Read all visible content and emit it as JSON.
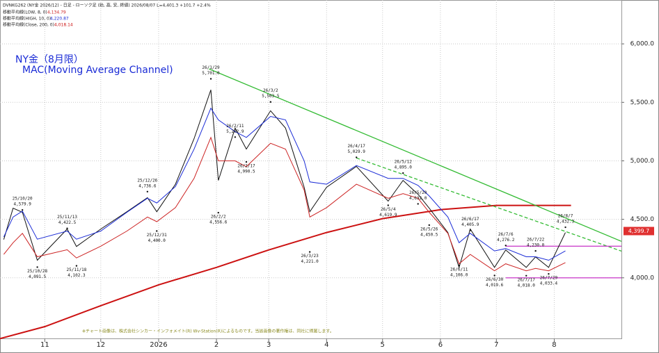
{
  "header": {
    "line": "DVNKG262 (NY金 2026/12) - 日足 - ローソク足 (始, 高, 安, 終値)  2026/08/07  L=4,401.3 +101.7 +2.4%",
    "indicators": [
      {
        "name": "移動平均線(LOW, 8, 0)",
        "value": "4,134.79"
      },
      {
        "name": "移動平均線(HIGH, 10, 0)",
        "value": "4,220.87"
      },
      {
        "name": "移動平均線(Close, 200, 0)",
        "value": "4,018.14"
      }
    ]
  },
  "chart_data": {
    "type": "line",
    "title": "NY金（8月限）",
    "subtitle": "MAC(Moving Average Channel)",
    "note": "※チャート画像は、株式会社シンカー・インフォメイト(R) Wv-Station(R)によるものです。当該画像の著作権は、同社に帰属します。",
    "xlim": [
      "2025-10-08",
      "2026-09-06"
    ],
    "xticks": [
      {
        "value": "2025-11-01",
        "label": "11"
      },
      {
        "value": "2025-12-01",
        "label": "12"
      },
      {
        "value": "2026-01-01",
        "label": "2026"
      },
      {
        "value": "2026-02-01",
        "label": "2"
      },
      {
        "value": "2026-03-01",
        "label": "3"
      },
      {
        "value": "2026-04-01",
        "label": "4"
      },
      {
        "value": "2026-05-01",
        "label": "5"
      },
      {
        "value": "2026-06-01",
        "label": "6"
      },
      {
        "value": "2026-07-01",
        "label": "7"
      },
      {
        "value": "2026-08-01",
        "label": "8"
      }
    ],
    "ylim": [
      3476,
      6375
    ],
    "yticks": [
      {
        "value": 4000,
        "label": "4,000.0"
      },
      {
        "value": 4500,
        "label": "4,500.0"
      },
      {
        "value": 5000,
        "label": "5,000.0"
      },
      {
        "value": 5500,
        "label": "5,500.0"
      },
      {
        "value": 6000,
        "label": "6,000.0"
      }
    ],
    "x": [
      "2025-10-10",
      "2025-10-15",
      "2025-10-20",
      "2025-10-28",
      "2025-11-13",
      "2025-11-18",
      "2025-12-01",
      "2025-12-15",
      "2025-12-26",
      "2025-12-31",
      "2026-01-10",
      "2026-01-20",
      "2026-01-29",
      "2026-02-02",
      "2026-02-11",
      "2026-02-17",
      "2026-03-02",
      "2026-03-10",
      "2026-03-20",
      "2026-03-23",
      "2026-04-01",
      "2026-04-17",
      "2026-05-04",
      "2026-05-12",
      "2026-05-20",
      "2026-05-26",
      "2026-06-05",
      "2026-06-11",
      "2026-06-17",
      "2026-06-30",
      "2026-07-06",
      "2026-07-17",
      "2026-07-22",
      "2026-07-29",
      "2026-08-07"
    ],
    "series": [
      {
        "color": "#111111",
        "width": 1,
        "values": [
          4327,
          4595,
          4560,
          4150,
          4417,
          4268,
          4417,
          4565,
          4685,
          4565,
          4800,
          5190,
          5607,
          4833,
          5280,
          5101,
          5428,
          5280,
          4774,
          4565,
          4774,
          4952,
          4655,
          4833,
          4714,
          4595,
          4387,
          4089,
          4417,
          4089,
          4238,
          4089,
          4179,
          4089,
          4387
        ]
      },
      {
        "color": "#1a2bd6",
        "width": 1,
        "values": [
          4350,
          4520,
          4570,
          4330,
          4400,
          4330,
          4400,
          4560,
          4680,
          4640,
          4780,
          5100,
          5450,
          5350,
          5250,
          5200,
          5380,
          5350,
          5000,
          4820,
          4800,
          4960,
          4850,
          4850,
          4790,
          4700,
          4520,
          4300,
          4380,
          4230,
          4250,
          4180,
          4180,
          4150,
          4230
        ]
      },
      {
        "color": "#cc2222",
        "width": 1,
        "values": [
          4200,
          4300,
          4380,
          4180,
          4240,
          4170,
          4270,
          4400,
          4520,
          4480,
          4600,
          4850,
          5200,
          5000,
          5000,
          4950,
          5150,
          5100,
          4750,
          4520,
          4600,
          4800,
          4680,
          4720,
          4680,
          4560,
          4380,
          4120,
          4200,
          4060,
          4120,
          4060,
          4080,
          4060,
          4130
        ]
      }
    ],
    "ma200": {
      "color": "#cc1111",
      "width": 2,
      "x": [
        "2025-10-08",
        "2025-11-01",
        "2025-12-01",
        "2026-01-01",
        "2026-02-01",
        "2026-03-01",
        "2026-04-01",
        "2026-05-01",
        "2026-06-01",
        "2026-07-01",
        "2026-08-10"
      ],
      "values": [
        3480,
        3583,
        3762,
        3940,
        4089,
        4238,
        4387,
        4506,
        4583,
        4619,
        4619
      ]
    },
    "trendlines": [
      {
        "color": "#33bb33",
        "dash": false,
        "x": [
          "2026-01-28",
          "2026-09-06"
        ],
        "values": [
          5786,
          4312
        ]
      },
      {
        "color": "#33bb33",
        "dash": true,
        "x": [
          "2026-04-17",
          "2026-09-06"
        ],
        "values": [
          5024,
          4228
        ]
      },
      {
        "color": "#cc44cc",
        "dash": false,
        "x": [
          "2026-07-06",
          "2026-09-06"
        ],
        "values": [
          4270,
          4270
        ]
      },
      {
        "color": "#cc44cc",
        "dash": false,
        "x": [
          "2026-07-06",
          "2026-09-06"
        ],
        "values": [
          4000,
          4000
        ]
      }
    ],
    "last_price": {
      "value": 4399.7,
      "label": "4,399.7",
      "color": "#e03030"
    },
    "annotations": [
      {
        "x": "2025-10-20",
        "label": "25/10/20",
        "value": 4579.9,
        "value_label": "4,579.9",
        "position": "above"
      },
      {
        "x": "2025-10-28",
        "label": "25/10/28",
        "value": 4091.5,
        "value_label": "4,091.5",
        "position": "below"
      },
      {
        "x": "2025-11-13",
        "label": "25/11/13",
        "value": 4422.5,
        "value_label": "4,422.5",
        "position": "above"
      },
      {
        "x": "2025-11-18",
        "label": "25/11/18",
        "value": 4102.3,
        "value_label": "4,102.3",
        "position": "below"
      },
      {
        "x": "2025-12-26",
        "label": "25/12/26",
        "value": 4736.6,
        "value_label": "4,736.6",
        "position": "above"
      },
      {
        "x": "2025-12-31",
        "label": "25/12/31",
        "value": 4400.0,
        "value_label": "4,400.0",
        "position": "below"
      },
      {
        "x": "2026-01-29",
        "label": "26/1/29",
        "value": 5701.0,
        "value_label": "5,701.0",
        "position": "above"
      },
      {
        "x": "2026-02-02",
        "label": "26/2/2",
        "value": 4556.6,
        "value_label": "4,556.6",
        "position": "below"
      },
      {
        "x": "2026-02-11",
        "label": "26/2/11",
        "value": 5202.9,
        "value_label": "5,202.9",
        "position": "above"
      },
      {
        "x": "2026-02-17",
        "label": "26/2/17",
        "value": 4990.5,
        "value_label": "4,990.5",
        "position": "below"
      },
      {
        "x": "2026-03-02",
        "label": "26/3/2",
        "value": 5503.5,
        "value_label": "5,503.5",
        "position": "above"
      },
      {
        "x": "2026-03-23",
        "label": "26/3/23",
        "value": 4221.0,
        "value_label": "4,221.0",
        "position": "below"
      },
      {
        "x": "2026-04-17",
        "label": "26/4/17",
        "value": 5029.9,
        "value_label": "5,029.9",
        "position": "above"
      },
      {
        "x": "2026-05-04",
        "label": "26/5/4",
        "value": 4619.9,
        "value_label": "4,619.9",
        "position": "below"
      },
      {
        "x": "2026-05-12",
        "label": "26/5/12",
        "value": 4895.0,
        "value_label": "4,895.0",
        "position": "above"
      },
      {
        "x": "2026-05-20",
        "label": "26/5/20",
        "value": 4632.0,
        "value_label": "4,632.0",
        "position": "above"
      },
      {
        "x": "2026-05-26",
        "label": "26/5/26",
        "value": 4450.5,
        "value_label": "4,450.5",
        "position": "below"
      },
      {
        "x": "2026-06-11",
        "label": "26/6/11",
        "value": 4106.0,
        "value_label": "4,106.0",
        "position": "below"
      },
      {
        "x": "2026-06-17",
        "label": "26/6/17",
        "value": 4405.9,
        "value_label": "4,405.9",
        "position": "above"
      },
      {
        "x": "2026-06-30",
        "label": "26/6/30",
        "value": 4019.6,
        "value_label": "4,019.6",
        "position": "below"
      },
      {
        "x": "2026-07-06",
        "label": "26/7/6",
        "value": 4276.2,
        "value_label": "4,276.2",
        "position": "above"
      },
      {
        "x": "2026-07-17",
        "label": "26/7/17",
        "value": 4018.0,
        "value_label": "4,018.0",
        "position": "below"
      },
      {
        "x": "2026-07-22",
        "label": "26/7/22",
        "value": 4230.0,
        "value_label": "4,230.0",
        "position": "above"
      },
      {
        "x": "2026-07-29",
        "label": "26/7/29",
        "value": 4033.4,
        "value_label": "4,033.4",
        "position": "below"
      },
      {
        "x": "2026-08-07",
        "label": "26/8/7",
        "value": 4432.3,
        "value_label": "4,432.3",
        "position": "above"
      }
    ]
  }
}
